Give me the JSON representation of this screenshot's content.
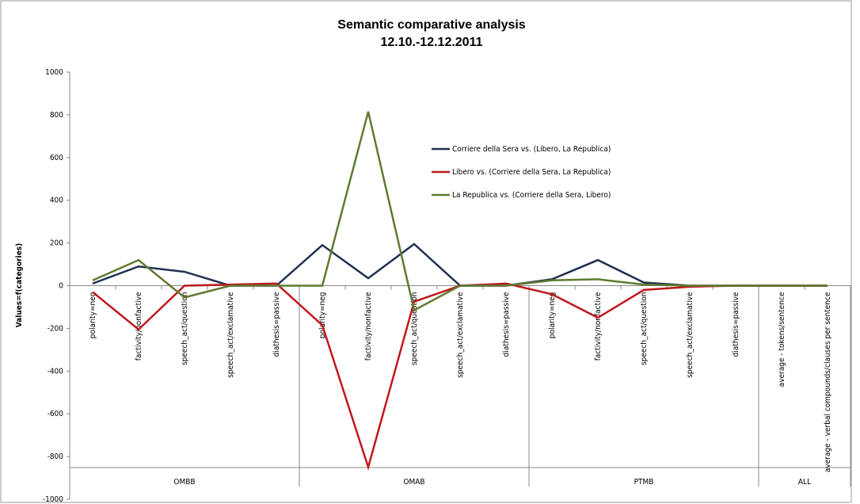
{
  "chart_data": {
    "type": "line",
    "title": [
      "Semantic comparative analysis",
      "12.10.-12.12.2011"
    ],
    "y_label": "Values=f(categories)",
    "categories": [
      "polarity=neg",
      "factivity/nonfactive",
      "speech_act/question",
      "speech_act/exclamative",
      "diathesis=passive",
      "polarity=neg",
      "factivity/nonfactive",
      "speech_act/question",
      "speech_act/exclamative",
      "diathesis=passive",
      "polarity=neg",
      "factivity/nonfactive",
      "speech_act/question",
      "speech_act/exclamative",
      "diathesis=passive",
      "average - tokens/sentence",
      "average - verbal compounds/clauses per sentence"
    ],
    "groups": [
      {
        "label": "OMBB",
        "span": 5
      },
      {
        "label": "OMAB",
        "span": 5
      },
      {
        "label": "PTMB",
        "span": 5
      },
      {
        "label": "ALL",
        "span": 2
      }
    ],
    "series": [
      {
        "name": "Corriere della Sera vs. (Libero, La Republica)",
        "color": "#1f3050",
        "values": [
          10,
          90,
          65,
          0,
          0,
          190,
          35,
          195,
          0,
          0,
          30,
          120,
          15,
          0,
          0,
          0,
          0
        ]
      },
      {
        "name": "Libero vs. (Corriere della Sera, La Republica)",
        "color": "#c0181c",
        "values": [
          -30,
          -205,
          0,
          5,
          10,
          -185,
          -850,
          -75,
          0,
          10,
          -40,
          -150,
          -20,
          -5,
          0,
          0,
          0
        ]
      },
      {
        "name": "La Republica vs. (Corriere della Sera, Libero)",
        "color": "#5f7a30",
        "values": [
          25,
          120,
          -55,
          0,
          0,
          0,
          815,
          -115,
          0,
          0,
          25,
          30,
          5,
          0,
          0,
          0,
          0
        ]
      }
    ],
    "ylim": [
      -1000,
      1000
    ],
    "yticks": [
      -1000,
      -800,
      -600,
      -400,
      -200,
      0,
      200,
      400,
      600,
      800,
      1000
    ]
  }
}
